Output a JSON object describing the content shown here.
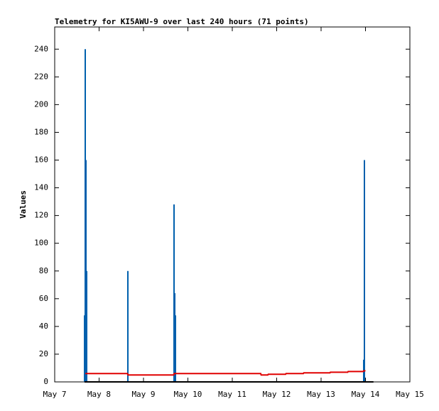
{
  "chart_data": {
    "type": "line",
    "title": "Telemetry for KI5AWU-9 over last 240 hours (71 points)",
    "y_label": "Values",
    "xlim": [
      7,
      15
    ],
    "xticks": [
      {
        "value": 7,
        "label": "May 7"
      },
      {
        "value": 8,
        "label": "May 8"
      },
      {
        "value": 9,
        "label": "May 9"
      },
      {
        "value": 10,
        "label": "May 10"
      },
      {
        "value": 11,
        "label": "May 11"
      },
      {
        "value": 12,
        "label": "May 12"
      },
      {
        "value": 13,
        "label": "May 13"
      },
      {
        "value": 14,
        "label": "May 14"
      },
      {
        "value": 15,
        "label": "May 15"
      }
    ],
    "ylim": [
      0,
      256
    ],
    "yticks": [
      0,
      20,
      40,
      60,
      80,
      100,
      120,
      140,
      160,
      180,
      200,
      220,
      240
    ],
    "series": [
      {
        "color": "#0060ad",
        "style": "impulses",
        "x": [
          7.672,
          7.688,
          7.704,
          7.72,
          8.648,
          9.688,
          9.704,
          9.72,
          13.96,
          13.976
        ],
        "values": [
          48,
          240,
          160,
          80,
          80,
          128,
          64,
          48,
          16,
          160
        ]
      },
      {
        "color": "#e00000",
        "style": "lines",
        "x": [
          7.69,
          8.64,
          8.65,
          9.68,
          9.69,
          11.64,
          11.65,
          11.8,
          11.81,
          12.2,
          12.21,
          12.6,
          12.61,
          13.2,
          13.21,
          13.6,
          13.61,
          13.95,
          13.96,
          14.0
        ],
        "values": [
          6,
          6,
          5,
          5,
          6,
          6,
          5,
          5,
          5.5,
          5.5,
          6,
          6,
          6.5,
          6.5,
          7,
          7,
          7.5,
          7.5,
          8,
          8
        ]
      },
      {
        "color": "#000000",
        "style": "lines",
        "x": [
          7.672,
          14.18
        ],
        "values": [
          0,
          0
        ]
      }
    ]
  }
}
